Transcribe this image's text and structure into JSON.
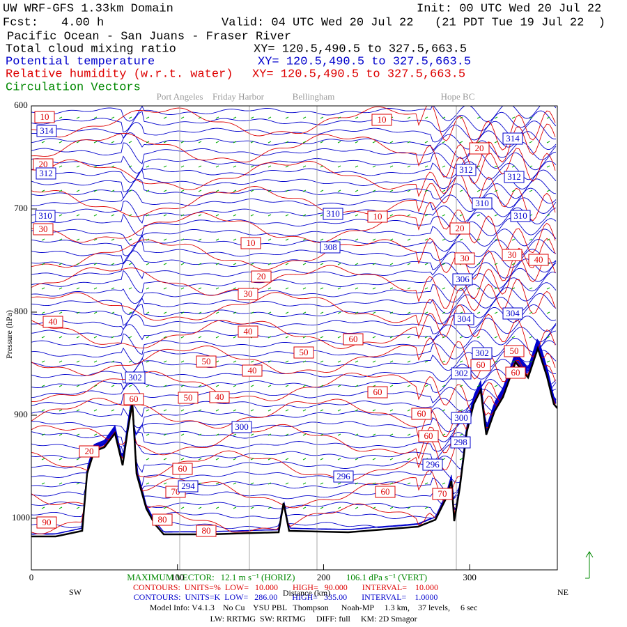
{
  "chart_data": {
    "type": "contour",
    "title": "UW WRF-GFS 1.33km Domain",
    "init": "Init: 00 UTC Wed 20 Jul 22",
    "fcst_label": "Fcst:",
    "fcst": "4.00 h",
    "valid": "Valid: 04 UTC Wed 20 Jul 22   (21 PDT Tue 19 Jul 22  )",
    "region": "Pacific Ocean - San Juans - Fraser River",
    "fields": [
      {
        "name": "Total cloud mixing ratio",
        "xy": "XY= 120.5,490.5 to 327.5,663.5",
        "color": "#000000"
      },
      {
        "name": "Potential temperature",
        "xy": "XY= 120.5,490.5 to 327.5,663.5",
        "color": "#0000cc"
      },
      {
        "name": "Relative humidity (w.r.t. water)",
        "xy": "XY= 120.5,490.5 to 327.5,663.5",
        "color": "#dd0000"
      },
      {
        "name": "Circulation Vectors",
        "color": "#008800"
      }
    ],
    "places": [
      "Port Angeles",
      "Friday Harbor",
      "Bellingham",
      "Hope BC"
    ],
    "xlim": [
      0,
      360
    ],
    "ylim": [
      600,
      1050
    ],
    "xticks": [
      0,
      100,
      200,
      300
    ],
    "yticks": [
      600,
      700,
      800,
      900,
      1000
    ],
    "x_label": "Distance (km)",
    "y_label": "Pressure (hPa)",
    "left_end": "SW",
    "right_end": "NE",
    "series": [
      {
        "name": "Relative humidity (w.r.t. water)",
        "color": "#dd0000",
        "values": [
          10,
          20,
          30,
          40,
          60,
          20,
          90,
          80,
          70,
          60,
          80,
          50,
          40,
          50,
          40,
          40,
          30,
          20,
          10,
          10,
          10,
          50,
          60,
          60,
          60,
          60,
          60,
          70,
          20,
          20,
          30,
          30,
          40,
          60,
          50,
          60
        ]
      },
      {
        "name": "Potential temperature",
        "color": "#0000cc",
        "values": [
          314,
          312,
          310,
          310,
          308,
          302,
          300,
          296,
          294,
          296,
          298,
          300,
          302,
          302,
          304,
          304,
          306,
          310,
          310,
          312,
          312,
          314
        ]
      }
    ],
    "vector_text": [
      "MAXIMUM VECTOR:",
      "12.1 m s⁻¹ (HORIZ)",
      "106.1 dPa s⁻¹ (VERT)"
    ],
    "contour_info": [
      "CONTOURS:  UNITS=%  LOW=   10.000       HIGH=   90.000       INTERVAL=    10.000",
      "CONTOURS:  UNITS=K  LOW=   286.00       HIGH=   335.00       INTERVAL=    1.0000"
    ],
    "model_info": "Model Info: V4.1.3    No Cu    YSU PBL   Thompson      Noah-MP     1.3 km,    37 levels,     6 sec",
    "physics_info": "LW: RRTMG  SW: RRTMG     DIFF: full     KM: 2D Smagor"
  }
}
